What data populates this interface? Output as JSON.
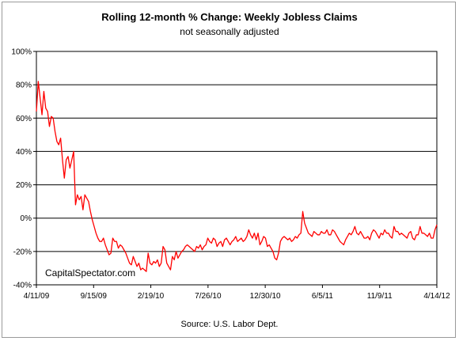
{
  "chart_data": {
    "type": "line",
    "title": "Rolling 12-month % Change: Weekly Jobless Claims",
    "subtitle": "not seasonally adjusted",
    "source": "Source: U.S. Labor Dept.",
    "watermark": "CapitalSpectator.com",
    "x_tick_labels": [
      "4/11/09",
      "9/15/09",
      "2/19/10",
      "7/26/10",
      "12/30/10",
      "6/5/11",
      "11/9/11",
      "4/14/12"
    ],
    "y_tick_labels": [
      "100%",
      "80%",
      "60%",
      "40%",
      "20%",
      "0%",
      "-20%",
      "-40%"
    ],
    "ylim": [
      -40,
      100
    ],
    "grid": "horizontal",
    "line_color": "#ff0000",
    "series": [
      {
        "values": [
          64,
          82,
          72,
          62,
          76,
          66,
          64,
          55,
          61,
          60,
          52,
          46,
          44,
          48,
          35,
          24,
          35,
          37,
          30,
          35,
          40,
          8,
          14,
          11,
          13,
          5,
          14,
          12,
          10,
          4,
          -1,
          -5,
          -9,
          -12,
          -14,
          -14,
          -12,
          -16,
          -19,
          -22,
          -21,
          -12,
          -14,
          -14,
          -18,
          -16,
          -17,
          -19,
          -21,
          -24,
          -27,
          -28,
          -23,
          -26,
          -29,
          -27,
          -31,
          -30,
          -31,
          -32,
          -21,
          -27,
          -28,
          -26,
          -27,
          -25,
          -29,
          -27,
          -17,
          -19,
          -27,
          -29,
          -31,
          -23,
          -25,
          -20,
          -24,
          -22,
          -20,
          -19,
          -17,
          -16,
          -17,
          -18,
          -19,
          -20,
          -17,
          -18,
          -16,
          -19,
          -17,
          -16,
          -12,
          -14,
          -15,
          -12,
          -13,
          -17,
          -15,
          -14,
          -17,
          -13,
          -12,
          -14,
          -16,
          -14,
          -13,
          -11,
          -14,
          -13,
          -12,
          -14,
          -13,
          -11,
          -7,
          -10,
          -12,
          -9,
          -13,
          -9,
          -16,
          -14,
          -11,
          -12,
          -17,
          -16,
          -18,
          -20,
          -24,
          -25,
          -21,
          -14,
          -12,
          -11,
          -12,
          -13,
          -12,
          -14,
          -13,
          -11,
          -12,
          -10,
          -9,
          4,
          -3,
          -6,
          -9,
          -10,
          -11,
          -8,
          -9,
          -10,
          -10,
          -8,
          -9,
          -9,
          -7,
          -10,
          -10,
          -7,
          -8,
          -10,
          -12,
          -14,
          -15,
          -16,
          -13,
          -11,
          -9,
          -10,
          -8,
          -5,
          -9,
          -10,
          -8,
          -10,
          -12,
          -12,
          -11,
          -13,
          -9,
          -7,
          -8,
          -10,
          -12,
          -9,
          -10,
          -7,
          -9,
          -9,
          -11,
          -12,
          -5,
          -8,
          -8,
          -10,
          -9,
          -10,
          -11,
          -12,
          -9,
          -8,
          -12,
          -13,
          -10,
          -10,
          -5,
          -9,
          -9,
          -10,
          -11,
          -9,
          -12,
          -12,
          -7,
          -4
        ]
      }
    ]
  }
}
